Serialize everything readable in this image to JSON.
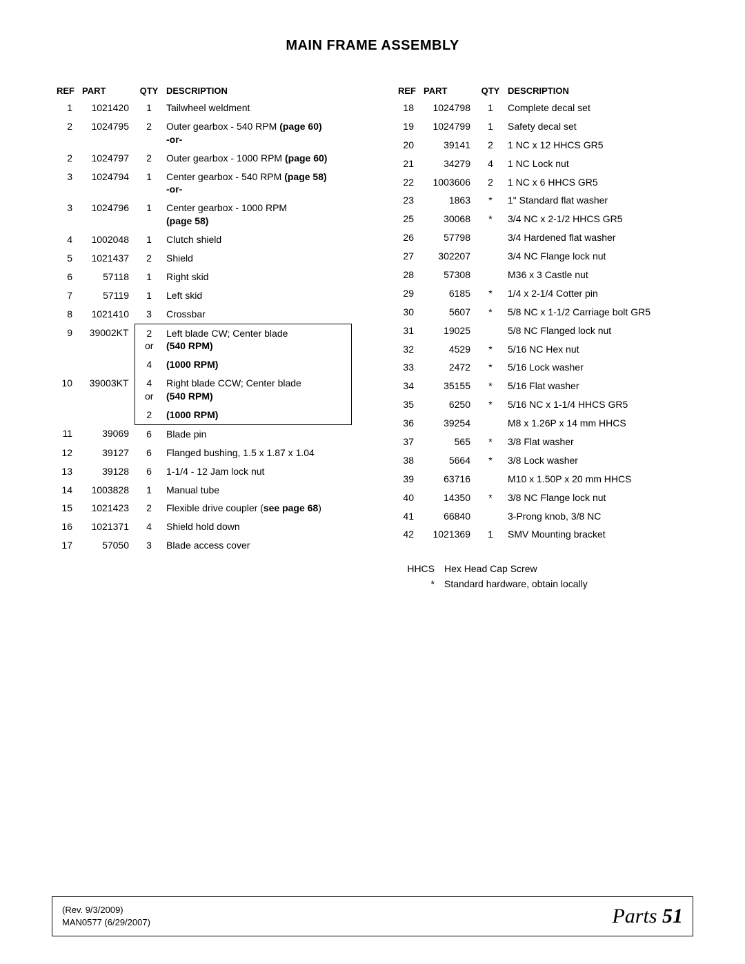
{
  "title": "MAIN FRAME ASSEMBLY",
  "headers": {
    "ref": "REF",
    "part": "PART",
    "qty": "QTY",
    "desc": "DESCRIPTION"
  },
  "legend": {
    "hhcs_key": "HHCS",
    "hhcs_val": "Hex Head Cap Screw",
    "star_key": "*",
    "star_val": "Standard hardware, obtain locally"
  },
  "footer": {
    "rev": "(Rev. 9/3/2009)",
    "doc": "MAN0577 (6/29/2007)",
    "section": "Parts",
    "page": "51"
  },
  "left": [
    {
      "ref": "1",
      "part": "1021420",
      "qty": "1",
      "desc": "Tailwheel weldment"
    },
    {
      "ref": "2",
      "part": "1024795",
      "qty": "2",
      "desc": "Outer gearbox - 540 RPM <b>(page 60)</b><br><b>-or-</b>"
    },
    {
      "ref": "2",
      "part": "1024797",
      "qty": "2",
      "desc": "Outer gearbox - 1000 RPM <b>(page 60)</b>"
    },
    {
      "ref": "3",
      "part": "1024794",
      "qty": "1",
      "desc": "Center gearbox - 540 RPM <b>(page 58)</b><br><b>-or-</b>"
    },
    {
      "ref": "3",
      "part": "1024796",
      "qty": "1",
      "desc": "Center gearbox - 1000 RPM<br><b>(page 58)</b>"
    },
    {
      "ref": "4",
      "part": "1002048",
      "qty": "1",
      "desc": "Clutch shield"
    },
    {
      "ref": "5",
      "part": "1021437",
      "qty": "2",
      "desc": "Shield"
    },
    {
      "ref": "6",
      "part": "57118",
      "qty": "1",
      "desc": "Right skid"
    },
    {
      "ref": "7",
      "part": "57119",
      "qty": "1",
      "desc": "Left skid"
    },
    {
      "ref": "8",
      "part": "1021410",
      "qty": "3",
      "desc": "Crossbar"
    },
    {
      "ref": "9",
      "part": "39002KT",
      "qty": "2<br>or",
      "desc": "Left blade CW; Center blade<br><b>(540 RPM)</b>",
      "box": "top"
    },
    {
      "ref": "",
      "part": "",
      "qty": "4",
      "desc": "<b>(1000 RPM)</b>",
      "box": "mid"
    },
    {
      "ref": "10",
      "part": "39003KT",
      "qty": "4<br>or",
      "desc": "Right blade CCW; Center blade<br><b>(540 RPM)</b>",
      "box": "mid"
    },
    {
      "ref": "",
      "part": "",
      "qty": "2",
      "desc": "<b>(1000 RPM)</b>",
      "box": "bottom"
    },
    {
      "ref": "11",
      "part": "39069",
      "qty": "6",
      "desc": "Blade pin"
    },
    {
      "ref": "12",
      "part": "39127",
      "qty": "6",
      "desc": "Flanged bushing, 1.5 x 1.87 x 1.04"
    },
    {
      "ref": "13",
      "part": "39128",
      "qty": "6",
      "desc": "1-1/4 - 12 Jam lock nut"
    },
    {
      "ref": "14",
      "part": "1003828",
      "qty": "1",
      "desc": "Manual tube"
    },
    {
      "ref": "15",
      "part": "1021423",
      "qty": "2",
      "desc": "Flexible drive coupler (<b>see page 68</b>)"
    },
    {
      "ref": "16",
      "part": "1021371",
      "qty": "4",
      "desc": "Shield hold down"
    },
    {
      "ref": "17",
      "part": "57050",
      "qty": "3",
      "desc": "Blade access cover"
    }
  ],
  "right": [
    {
      "ref": "18",
      "part": "1024798",
      "qty": "1",
      "desc": "Complete decal set"
    },
    {
      "ref": "19",
      "part": "1024799",
      "qty": "1",
      "desc": "Safety decal set"
    },
    {
      "ref": "20",
      "part": "39141",
      "qty": "2",
      "desc": "1 NC x 12 HHCS GR5"
    },
    {
      "ref": "21",
      "part": "34279",
      "qty": "4",
      "desc": "1 NC Lock nut"
    },
    {
      "ref": "22",
      "part": "1003606",
      "qty": "2",
      "desc": "1 NC x 6 HHCS GR5"
    },
    {
      "ref": "23",
      "part": "1863",
      "qty": "*",
      "desc": "1\" Standard flat washer"
    },
    {
      "ref": "25",
      "part": "30068",
      "qty": "*",
      "desc": "3/4 NC x 2-1/2 HHCS GR5"
    },
    {
      "ref": "26",
      "part": "57798",
      "qty": "",
      "desc": "3/4 Hardened flat washer"
    },
    {
      "ref": "27",
      "part": "302207",
      "qty": "",
      "desc": "3/4 NC Flange lock nut"
    },
    {
      "ref": "28",
      "part": "57308",
      "qty": "",
      "desc": "M36 x 3 Castle nut"
    },
    {
      "ref": "29",
      "part": "6185",
      "qty": "*",
      "desc": "1/4 x 2-1/4 Cotter pin"
    },
    {
      "ref": "30",
      "part": "5607",
      "qty": "*",
      "desc": "5/8 NC x 1-1/2 Carriage bolt GR5"
    },
    {
      "ref": "31",
      "part": "19025",
      "qty": "",
      "desc": "5/8 NC Flanged lock nut"
    },
    {
      "ref": "32",
      "part": "4529",
      "qty": "*",
      "desc": "5/16 NC Hex nut"
    },
    {
      "ref": "33",
      "part": "2472",
      "qty": "*",
      "desc": "5/16 Lock washer"
    },
    {
      "ref": "34",
      "part": "35155",
      "qty": "*",
      "desc": "5/16 Flat washer"
    },
    {
      "ref": "35",
      "part": "6250",
      "qty": "*",
      "desc": "5/16 NC x 1-1/4 HHCS GR5"
    },
    {
      "ref": "36",
      "part": "39254",
      "qty": "",
      "desc": "M8 x 1.26P x 14 mm HHCS"
    },
    {
      "ref": "37",
      "part": "565",
      "qty": "*",
      "desc": "3/8 Flat washer"
    },
    {
      "ref": "38",
      "part": "5664",
      "qty": "*",
      "desc": "3/8 Lock washer"
    },
    {
      "ref": "39",
      "part": "63716",
      "qty": "",
      "desc": "M10 x 1.50P x 20 mm HHCS"
    },
    {
      "ref": "40",
      "part": "14350",
      "qty": "*",
      "desc": "3/8 NC Flange lock nut"
    },
    {
      "ref": "41",
      "part": "66840",
      "qty": "",
      "desc": "3-Prong knob, 3/8 NC"
    },
    {
      "ref": "42",
      "part": "1021369",
      "qty": "1",
      "desc": "SMV Mounting bracket"
    }
  ]
}
